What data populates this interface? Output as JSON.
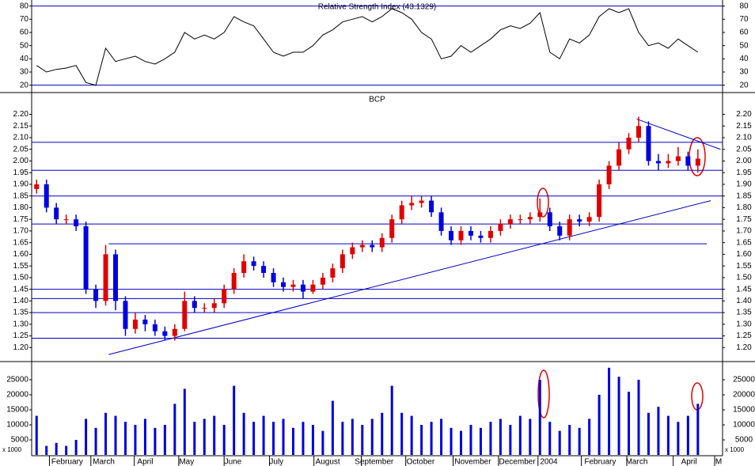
{
  "chart_data": [
    {
      "type": "line",
      "title": "Relative Strength Index (43.1329)",
      "xlim": [
        0,
        70
      ],
      "ylim": [
        15,
        84
      ],
      "yticks": [
        20,
        30,
        40,
        50,
        60,
        70,
        80
      ],
      "levels": [
        80,
        20
      ],
      "grid": false,
      "series": [
        {
          "name": "RSI",
          "color": "#000000",
          "values": [
            35,
            30,
            32,
            33,
            35,
            22,
            20,
            48,
            38,
            40,
            42,
            38,
            36,
            40,
            45,
            60,
            55,
            58,
            55,
            60,
            72,
            68,
            65,
            55,
            45,
            42,
            45,
            45,
            50,
            58,
            62,
            68,
            70,
            72,
            68,
            72,
            78,
            75,
            70,
            60,
            55,
            40,
            42,
            50,
            45,
            50,
            55,
            62,
            65,
            63,
            67,
            75,
            45,
            40,
            55,
            52,
            58,
            72,
            78,
            75,
            78,
            60,
            50,
            52,
            48,
            55,
            50,
            45
          ]
        }
      ]
    },
    {
      "type": "candlestick",
      "title": "BCP",
      "xlim": [
        0,
        70
      ],
      "ylim": [
        1.14,
        2.29
      ],
      "grid": false,
      "yticks": [
        {
          "value": 1.2,
          "label": "1.20"
        },
        {
          "value": 1.25,
          "label": "1.25"
        },
        {
          "value": 1.3,
          "label": "1.30"
        },
        {
          "value": 1.35,
          "label": "1.35"
        },
        {
          "value": 1.4,
          "label": "1.40"
        },
        {
          "value": 1.45,
          "label": "1.45"
        },
        {
          "value": 1.5,
          "label": "1.50"
        },
        {
          "value": 1.55,
          "label": "1.55"
        },
        {
          "value": 1.6,
          "label": "1.60"
        },
        {
          "value": 1.65,
          "label": "1.65"
        },
        {
          "value": 1.7,
          "label": "1.70"
        },
        {
          "value": 1.75,
          "label": "1.75"
        },
        {
          "value": 1.8,
          "label": "1.80"
        },
        {
          "value": 1.85,
          "label": "1.85"
        },
        {
          "value": 1.9,
          "label": "1.90"
        },
        {
          "value": 1.95,
          "label": "1.95"
        },
        {
          "value": 2.0,
          "label": "2.00"
        },
        {
          "value": 2.05,
          "label": "2.05"
        },
        {
          "value": 2.1,
          "label": "2.10"
        },
        {
          "value": 2.15,
          "label": "2.15"
        },
        {
          "value": 2.2,
          "label": "2.20"
        }
      ],
      "levels": [
        2.08,
        1.96,
        1.85,
        1.73,
        1.45,
        1.41,
        1.35,
        1.24
      ],
      "trendlines": [
        [
          7.8,
          1.17,
          68.8,
          1.83
        ],
        [
          61.3,
          2.18,
          69.8,
          2.05
        ],
        [
          7.8,
          1.645,
          68.4,
          1.645
        ]
      ],
      "up_color": "#e00000",
      "down_color": "#0000e0",
      "open": [
        1.88,
        1.9,
        1.8,
        1.75,
        1.75,
        1.72,
        1.45,
        1.4,
        1.6,
        1.4,
        1.28,
        1.32,
        1.3,
        1.27,
        1.25,
        1.28,
        1.4,
        1.37,
        1.37,
        1.39,
        1.45,
        1.52,
        1.57,
        1.55,
        1.52,
        1.48,
        1.46,
        1.47,
        1.44,
        1.47,
        1.5,
        1.54,
        1.6,
        1.63,
        1.64,
        1.63,
        1.67,
        1.75,
        1.81,
        1.82,
        1.83,
        1.78,
        1.7,
        1.66,
        1.7,
        1.68,
        1.67,
        1.7,
        1.73,
        1.75,
        1.75,
        1.76,
        1.78,
        1.72,
        1.68,
        1.75,
        1.74,
        1.76,
        1.9,
        1.98,
        2.05,
        2.1,
        2.15,
        2.0,
        1.99,
        2.0,
        2.02,
        1.98
      ],
      "high": [
        1.92,
        1.92,
        1.82,
        1.77,
        1.77,
        1.74,
        1.47,
        1.64,
        1.62,
        1.42,
        1.35,
        1.34,
        1.32,
        1.29,
        1.3,
        1.44,
        1.42,
        1.39,
        1.41,
        1.47,
        1.54,
        1.6,
        1.59,
        1.57,
        1.54,
        1.5,
        1.49,
        1.49,
        1.49,
        1.52,
        1.56,
        1.62,
        1.65,
        1.66,
        1.66,
        1.69,
        1.77,
        1.83,
        1.85,
        1.85,
        1.85,
        1.8,
        1.72,
        1.72,
        1.72,
        1.7,
        1.72,
        1.75,
        1.77,
        1.77,
        1.78,
        1.84,
        1.8,
        1.74,
        1.77,
        1.77,
        1.78,
        1.92,
        2.0,
        2.08,
        2.12,
        2.19,
        2.17,
        2.03,
        2.03,
        2.06,
        2.04,
        2.05
      ],
      "low": [
        1.86,
        1.78,
        1.73,
        1.73,
        1.7,
        1.43,
        1.37,
        1.38,
        1.36,
        1.25,
        1.26,
        1.27,
        1.25,
        1.23,
        1.23,
        1.27,
        1.35,
        1.35,
        1.35,
        1.37,
        1.43,
        1.5,
        1.53,
        1.5,
        1.46,
        1.44,
        1.44,
        1.41,
        1.43,
        1.45,
        1.48,
        1.52,
        1.58,
        1.61,
        1.61,
        1.61,
        1.65,
        1.73,
        1.79,
        1.8,
        1.76,
        1.68,
        1.64,
        1.64,
        1.66,
        1.65,
        1.65,
        1.68,
        1.71,
        1.73,
        1.73,
        1.74,
        1.7,
        1.66,
        1.66,
        1.72,
        1.72,
        1.74,
        1.88,
        1.96,
        2.03,
        2.08,
        1.98,
        1.96,
        1.97,
        1.98,
        1.96,
        1.95
      ],
      "close": [
        1.9,
        1.8,
        1.75,
        1.75,
        1.72,
        1.45,
        1.4,
        1.6,
        1.4,
        1.28,
        1.32,
        1.3,
        1.27,
        1.25,
        1.28,
        1.4,
        1.37,
        1.37,
        1.39,
        1.45,
        1.52,
        1.57,
        1.55,
        1.52,
        1.48,
        1.46,
        1.47,
        1.44,
        1.47,
        1.5,
        1.54,
        1.6,
        1.63,
        1.64,
        1.63,
        1.67,
        1.75,
        1.81,
        1.82,
        1.83,
        1.78,
        1.7,
        1.66,
        1.7,
        1.68,
        1.67,
        1.7,
        1.73,
        1.75,
        1.75,
        1.76,
        1.78,
        1.72,
        1.68,
        1.75,
        1.74,
        1.76,
        1.9,
        1.98,
        2.05,
        2.1,
        2.15,
        2.0,
        1.99,
        2.0,
        2.02,
        1.98,
        2.01
      ]
    },
    {
      "type": "bar",
      "unit_label": "x 1000",
      "xlim": [
        0,
        70
      ],
      "ylim": [
        0,
        30000
      ],
      "yticks": [
        5000,
        10000,
        15000,
        20000,
        25000
      ],
      "grid": false,
      "xticks": [
        1.8,
        6.0,
        10.4,
        14.9,
        19.5,
        24.1,
        28.6,
        33.4,
        37.9,
        42.7,
        47.3,
        51.3,
        55.7,
        60.3,
        65.0,
        69.2
      ],
      "month_labels": [
        {
          "value": 3.6,
          "label": "February"
        },
        {
          "value": 7.3,
          "label": "March"
        },
        {
          "value": 11.5,
          "label": "April"
        },
        {
          "value": 15.7,
          "label": "May"
        },
        {
          "value": 20.4,
          "label": "June"
        },
        {
          "value": 24.8,
          "label": "July"
        },
        {
          "value": 30.0,
          "label": "August"
        },
        {
          "value": 34.7,
          "label": "September"
        },
        {
          "value": 39.4,
          "label": "October"
        },
        {
          "value": 44.7,
          "label": "November"
        },
        {
          "value": 49.2,
          "label": "December"
        },
        {
          "value": 52.4,
          "label": "2004"
        },
        {
          "value": 57.6,
          "label": "February"
        },
        {
          "value": 61.3,
          "label": "March"
        },
        {
          "value": 66.6,
          "label": "April"
        },
        {
          "value": 69.6,
          "label": "M"
        }
      ],
      "color": "#0000e0",
      "values": [
        13000,
        3000,
        4000,
        3000,
        5000,
        12000,
        9000,
        14000,
        13000,
        11000,
        10000,
        12000,
        9000,
        10000,
        17000,
        22000,
        11000,
        12000,
        13000,
        10000,
        23000,
        14000,
        11000,
        13000,
        11000,
        12000,
        9000,
        11000,
        10000,
        8000,
        18000,
        11000,
        12000,
        10000,
        12000,
        14000,
        23000,
        14000,
        13000,
        10000,
        11000,
        12000,
        9000,
        8000,
        10000,
        9000,
        11000,
        12000,
        10000,
        13000,
        12000,
        25000,
        11000,
        8000,
        10000,
        9000,
        12000,
        20000,
        29000,
        26000,
        21000,
        25000,
        14000,
        16000,
        13000,
        11000,
        13000,
        17000
      ]
    }
  ]
}
